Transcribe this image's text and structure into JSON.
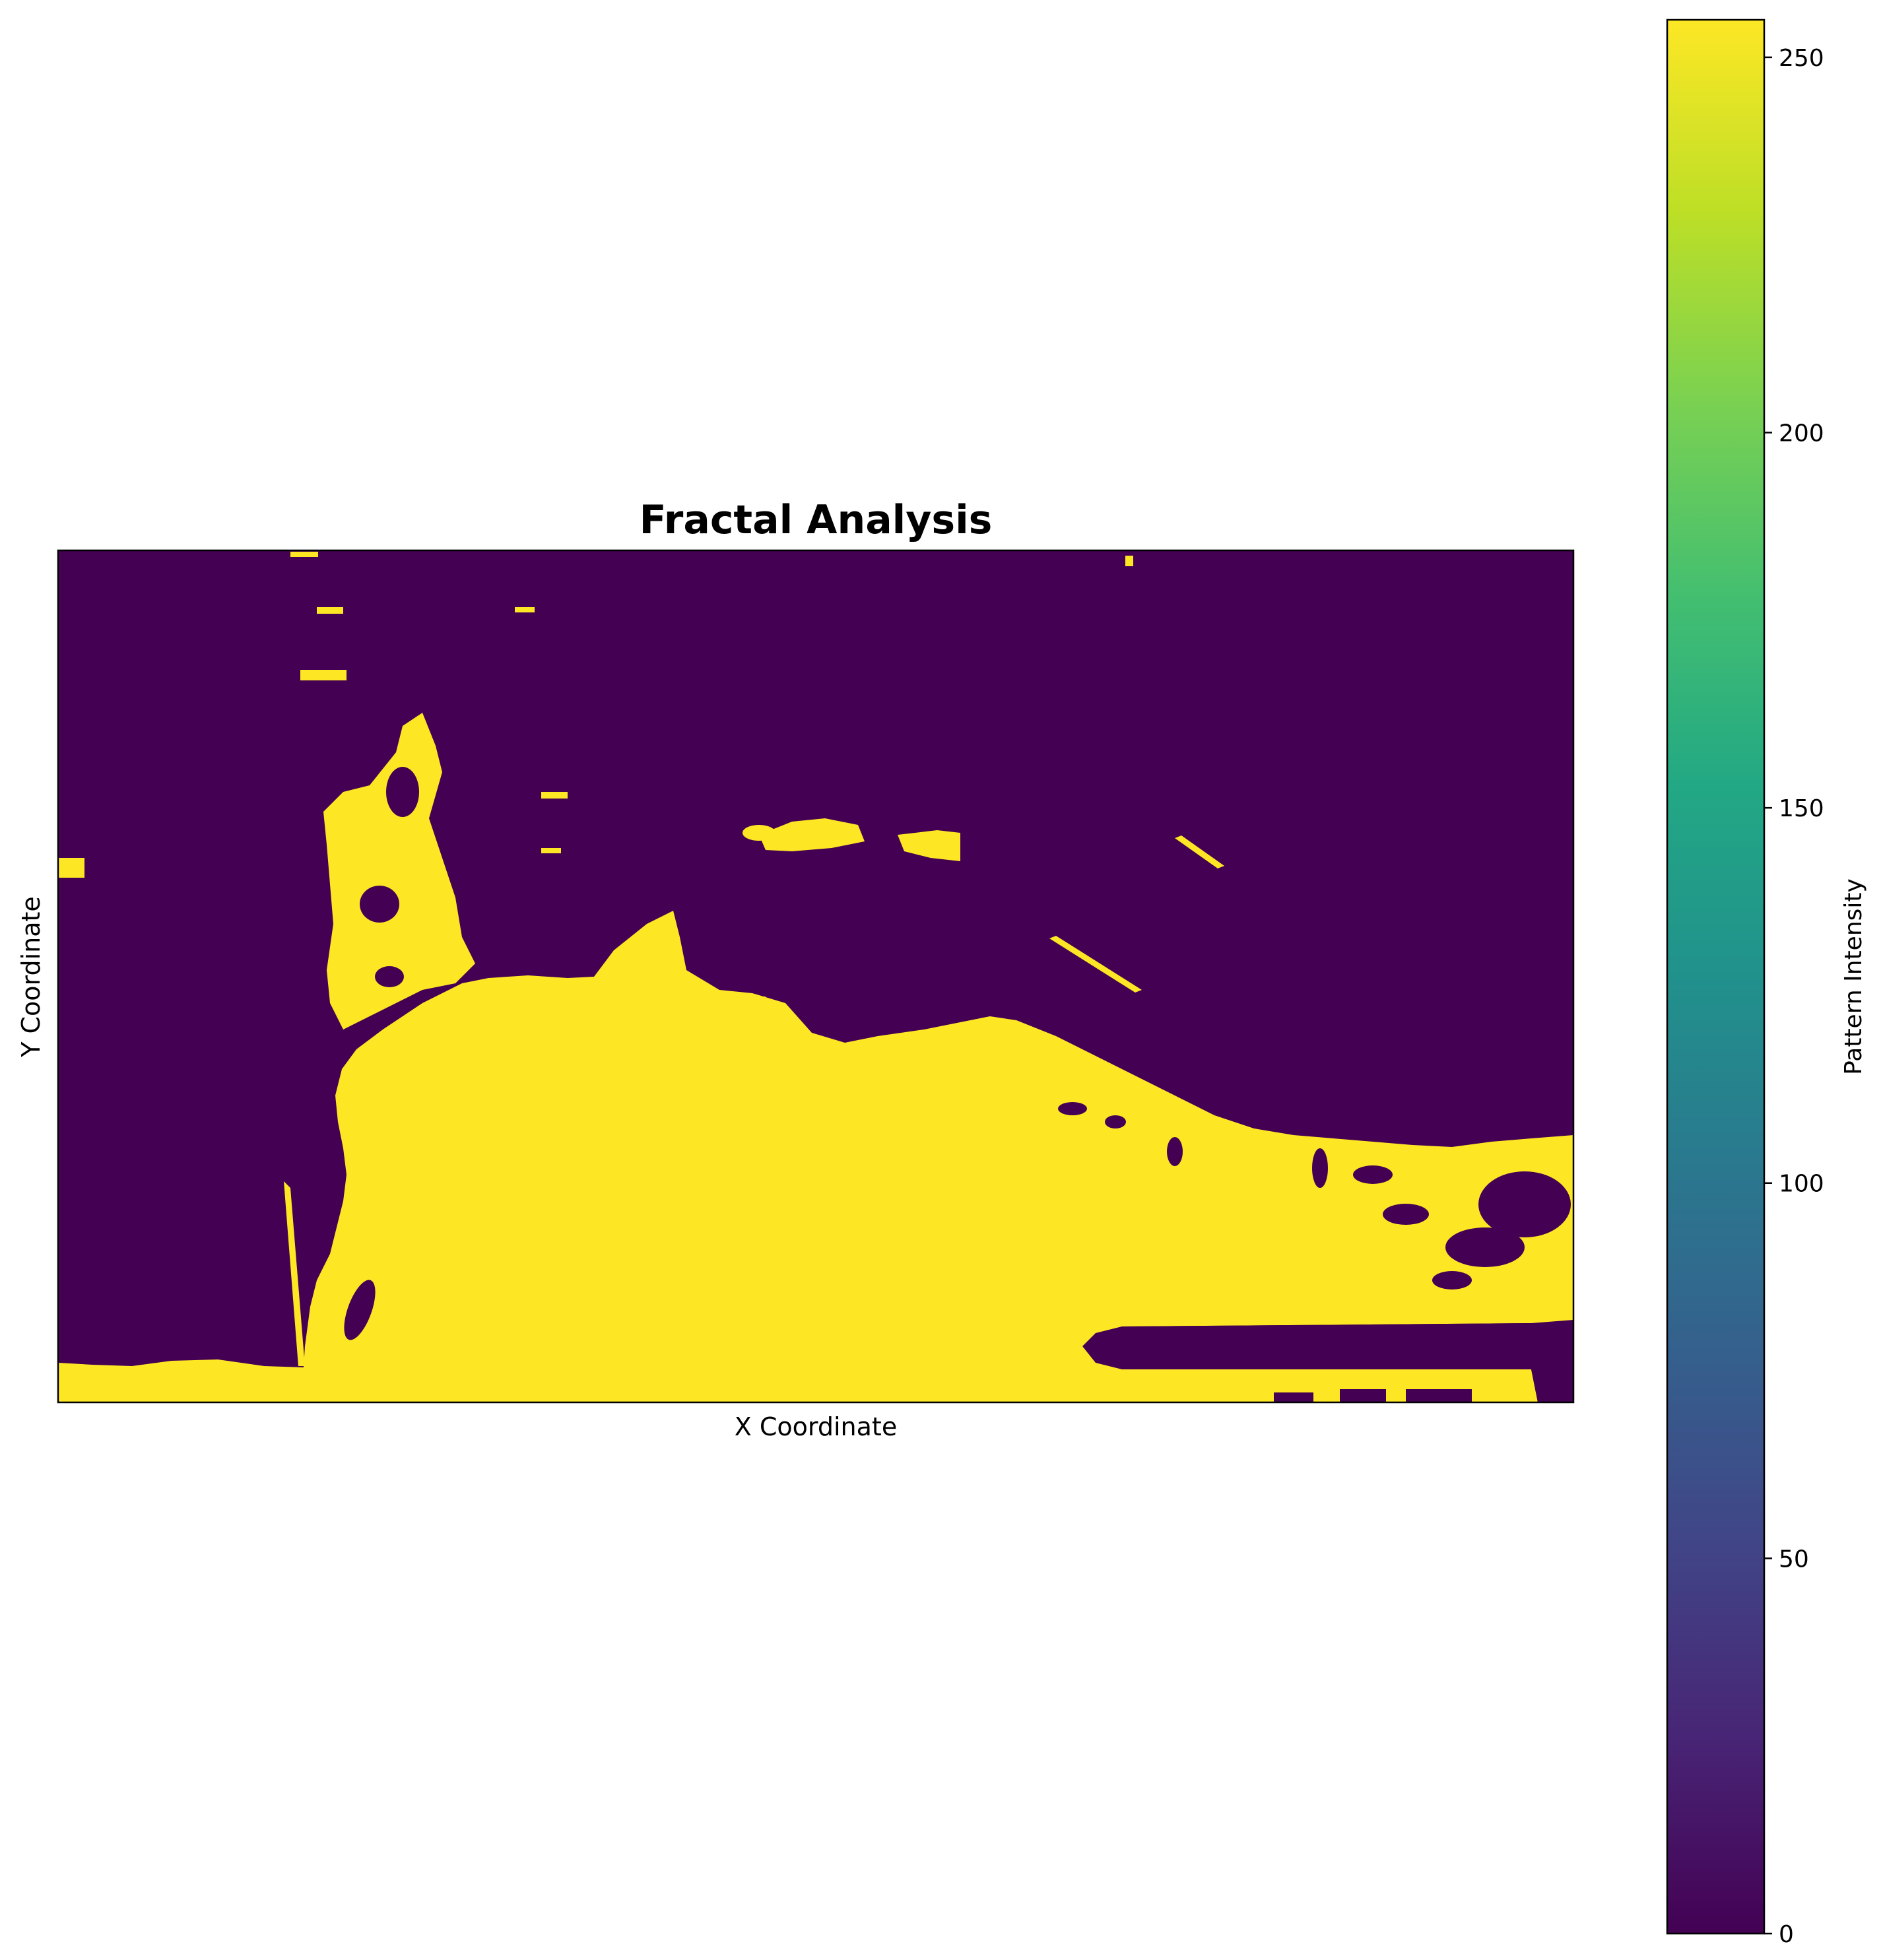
{
  "chart_data": {
    "type": "heatmap",
    "title": "Fractal Analysis",
    "xlabel": "X Coordinate",
    "ylabel": "Y Coordinate",
    "x_ticks_shown": false,
    "y_ticks_shown": false,
    "colormap": "viridis",
    "value_range": [
      0,
      255
    ],
    "values_present": [
      0,
      255
    ],
    "low_color": "#440154",
    "high_color": "#fde725",
    "colorbar": {
      "label": "Pattern Intensity",
      "ticks": [
        0,
        50,
        100,
        150,
        200,
        250
      ],
      "tick_labels": [
        "0",
        "50",
        "100",
        "150",
        "200",
        "250"
      ],
      "position": "right"
    }
  }
}
